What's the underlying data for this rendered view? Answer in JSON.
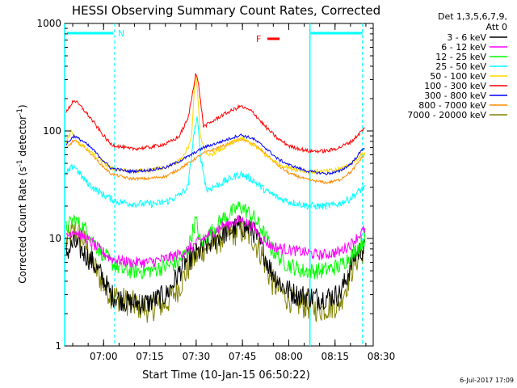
{
  "chart_data": {
    "type": "line",
    "title": "HESSI Observing Summary Count Rates, Corrected",
    "xlabel": "Start Time (10-Jan-15 06:50:22)",
    "ylabel_main": "Corrected Count Rate (s",
    "ylabel_sup1": "-1",
    "ylabel_mid": " detector",
    "ylabel_sup2": "-1",
    "ylabel_end": ")",
    "yscale": "log",
    "ylim": [
      1,
      1000
    ],
    "xlim_minutes": [
      -3,
      97
    ],
    "x_ticks": [
      {
        "label": "07:00",
        "t": 9.63
      },
      {
        "label": "07:15",
        "t": 24.63
      },
      {
        "label": "07:30",
        "t": 39.63
      },
      {
        "label": "07:45",
        "t": 54.63
      },
      {
        "label": "08:00",
        "t": 69.63
      },
      {
        "label": "08:15",
        "t": 84.63
      },
      {
        "label": "08:30",
        "t": 99.63
      }
    ],
    "y_ticks": [
      {
        "label": "1000",
        "v": 1000
      },
      {
        "label": "100",
        "v": 100
      },
      {
        "label": "10",
        "v": 10
      },
      {
        "label": "1",
        "v": 1
      }
    ],
    "legend_header": [
      "Det 1,3,5,6,7,9,",
      "Att 0"
    ],
    "legend_placement": "right",
    "series": [
      {
        "name": "3 - 6 keV",
        "color": "#000000"
      },
      {
        "name": "6 - 12 keV",
        "color": "#ff00ff"
      },
      {
        "name": "12 - 25 keV",
        "color": "#00ff00"
      },
      {
        "name": "25 - 50 keV",
        "color": "#00ffff"
      },
      {
        "name": "50 - 100 keV",
        "color": "#ffd700"
      },
      {
        "name": "100 - 300 keV",
        "color": "#ff0000"
      },
      {
        "name": "300 - 800 keV",
        "color": "#0000ff"
      },
      {
        "name": "800 - 7000 keV",
        "color": "#ff8c00"
      },
      {
        "name": "7000 - 20000 keV",
        "color": "#808000"
      }
    ],
    "profiles": {
      "3 - 6 keV": {
        "color": "#000000",
        "points": [
          [
            -3,
            7
          ],
          [
            0,
            9
          ],
          [
            3,
            7.5
          ],
          [
            6,
            6
          ],
          [
            9,
            4.5
          ],
          [
            12,
            3
          ],
          [
            18,
            2.5
          ],
          [
            24,
            2.5
          ],
          [
            30,
            3
          ],
          [
            36,
            6
          ],
          [
            42,
            8
          ],
          [
            48,
            11
          ],
          [
            54,
            13
          ],
          [
            58,
            12
          ],
          [
            61,
            8
          ],
          [
            64,
            5
          ],
          [
            68,
            3.5
          ],
          [
            72,
            3
          ],
          [
            80,
            2.8
          ],
          [
            86,
            3
          ],
          [
            88,
            4
          ],
          [
            91,
            7
          ],
          [
            94,
            8
          ]
        ],
        "noise": 0.25
      },
      "6 - 12 keV": {
        "color": "#ff00ff",
        "points": [
          [
            -3,
            10
          ],
          [
            0,
            12
          ],
          [
            4,
            10
          ],
          [
            8,
            8
          ],
          [
            12,
            6.5
          ],
          [
            18,
            6
          ],
          [
            24,
            6
          ],
          [
            30,
            6.5
          ],
          [
            36,
            7.5
          ],
          [
            42,
            10
          ],
          [
            48,
            13
          ],
          [
            54,
            15
          ],
          [
            58,
            13
          ],
          [
            61,
            10
          ],
          [
            64,
            8.5
          ],
          [
            68,
            8
          ],
          [
            74,
            7.5
          ],
          [
            80,
            7
          ],
          [
            86,
            7.5
          ],
          [
            90,
            9
          ],
          [
            94,
            12
          ]
        ],
        "noise": 0.12
      },
      "12 - 25 keV": {
        "color": "#00ff00",
        "points": [
          [
            -3,
            12
          ],
          [
            0,
            15
          ],
          [
            4,
            12
          ],
          [
            8,
            8
          ],
          [
            12,
            6
          ],
          [
            16,
            5
          ],
          [
            24,
            5
          ],
          [
            30,
            5.5
          ],
          [
            34,
            6
          ],
          [
            37,
            8
          ],
          [
            39.5,
            15
          ],
          [
            41,
            9
          ],
          [
            44,
            11
          ],
          [
            48,
            15
          ],
          [
            54,
            20
          ],
          [
            58,
            16
          ],
          [
            61,
            12
          ],
          [
            64,
            8
          ],
          [
            68,
            6
          ],
          [
            74,
            5
          ],
          [
            80,
            5
          ],
          [
            86,
            5.5
          ],
          [
            90,
            7
          ],
          [
            94,
            10
          ]
        ],
        "noise": 0.18
      },
      "25 - 50 keV": {
        "color": "#00ffff",
        "points": [
          [
            -3,
            38
          ],
          [
            0,
            48
          ],
          [
            3,
            36
          ],
          [
            6,
            30
          ],
          [
            10,
            25
          ],
          [
            14,
            22
          ],
          [
            20,
            21
          ],
          [
            26,
            21
          ],
          [
            30,
            22
          ],
          [
            34,
            25
          ],
          [
            37,
            30
          ],
          [
            39,
            100
          ],
          [
            40,
            130
          ],
          [
            41,
            60
          ],
          [
            43,
            28
          ],
          [
            48,
            33
          ],
          [
            54,
            40
          ],
          [
            58,
            35
          ],
          [
            62,
            28
          ],
          [
            66,
            24
          ],
          [
            70,
            22
          ],
          [
            76,
            20
          ],
          [
            82,
            20
          ],
          [
            86,
            21
          ],
          [
            90,
            24
          ],
          [
            94,
            30
          ]
        ],
        "noise": 0.08
      },
      "50 - 100 keV": {
        "color": "#ffd700",
        "points": [
          [
            -3,
            70
          ],
          [
            -1,
            100
          ],
          [
            1,
            80
          ],
          [
            4,
            68
          ],
          [
            8,
            55
          ],
          [
            12,
            45
          ],
          [
            18,
            42
          ],
          [
            24,
            43
          ],
          [
            30,
            46
          ],
          [
            35,
            55
          ],
          [
            38,
            80
          ],
          [
            39.5,
            380
          ],
          [
            41,
            90
          ],
          [
            43,
            58
          ],
          [
            48,
            68
          ],
          [
            54,
            85
          ],
          [
            58,
            75
          ],
          [
            62,
            60
          ],
          [
            66,
            50
          ],
          [
            70,
            45
          ],
          [
            76,
            42
          ],
          [
            82,
            42
          ],
          [
            86,
            44
          ],
          [
            90,
            50
          ],
          [
            94,
            62
          ]
        ],
        "noise": 0.05
      },
      "100 - 300 keV": {
        "color": "#ff0000",
        "points": [
          [
            -3,
            140
          ],
          [
            0,
            195
          ],
          [
            3,
            160
          ],
          [
            6,
            125
          ],
          [
            9,
            95
          ],
          [
            12,
            75
          ],
          [
            18,
            68
          ],
          [
            24,
            70
          ],
          [
            30,
            76
          ],
          [
            34,
            88
          ],
          [
            37,
            130
          ],
          [
            38.5,
            230
          ],
          [
            39.5,
            350
          ],
          [
            40.5,
            260
          ],
          [
            42,
            110
          ],
          [
            44,
            118
          ],
          [
            48,
            140
          ],
          [
            54,
            170
          ],
          [
            58,
            150
          ],
          [
            62,
            110
          ],
          [
            66,
            85
          ],
          [
            70,
            72
          ],
          [
            76,
            65
          ],
          [
            82,
            65
          ],
          [
            86,
            70
          ],
          [
            90,
            80
          ],
          [
            94,
            105
          ]
        ],
        "noise": 0.04
      },
      "300 - 800 keV": {
        "color": "#0000ff",
        "points": [
          [
            -3,
            72
          ],
          [
            0,
            90
          ],
          [
            3,
            80
          ],
          [
            6,
            68
          ],
          [
            9,
            55
          ],
          [
            12,
            45
          ],
          [
            18,
            42
          ],
          [
            24,
            43
          ],
          [
            30,
            46
          ],
          [
            34,
            52
          ],
          [
            38,
            60
          ],
          [
            42,
            70
          ],
          [
            48,
            80
          ],
          [
            54,
            92
          ],
          [
            58,
            85
          ],
          [
            62,
            70
          ],
          [
            66,
            55
          ],
          [
            70,
            48
          ],
          [
            76,
            42
          ],
          [
            82,
            40
          ],
          [
            86,
            42
          ],
          [
            90,
            50
          ],
          [
            94,
            70
          ]
        ],
        "noise": 0.03
      },
      "800 - 7000 keV": {
        "color": "#ff8c00",
        "points": [
          [
            -3,
            66
          ],
          [
            0,
            82
          ],
          [
            3,
            72
          ],
          [
            6,
            60
          ],
          [
            9,
            48
          ],
          [
            12,
            40
          ],
          [
            18,
            36
          ],
          [
            24,
            36
          ],
          [
            30,
            38
          ],
          [
            34,
            44
          ],
          [
            38,
            52
          ],
          [
            42,
            62
          ],
          [
            48,
            72
          ],
          [
            54,
            84
          ],
          [
            58,
            76
          ],
          [
            62,
            62
          ],
          [
            66,
            48
          ],
          [
            70,
            40
          ],
          [
            76,
            35
          ],
          [
            82,
            33
          ],
          [
            86,
            35
          ],
          [
            90,
            42
          ],
          [
            94,
            60
          ]
        ],
        "noise": 0.03
      },
      "7000 - 20000 keV": {
        "color": "#808000",
        "points": [
          [
            -3,
            9
          ],
          [
            0,
            11.5
          ],
          [
            3,
            10
          ],
          [
            6,
            6
          ],
          [
            9,
            4
          ],
          [
            12,
            3
          ],
          [
            18,
            2.5
          ],
          [
            24,
            2.2
          ],
          [
            30,
            2.5
          ],
          [
            34,
            3.5
          ],
          [
            38,
            6
          ],
          [
            42,
            8
          ],
          [
            48,
            10
          ],
          [
            54,
            12
          ],
          [
            58,
            10
          ],
          [
            61,
            7
          ],
          [
            64,
            4
          ],
          [
            68,
            3
          ],
          [
            72,
            2.5
          ],
          [
            80,
            2.2
          ],
          [
            86,
            2.5
          ],
          [
            88,
            3.5
          ],
          [
            91,
            6
          ],
          [
            94,
            8
          ]
        ],
        "noise": 0.3
      }
    },
    "annotations": [
      {
        "label": "N",
        "color": "#00ffff"
      },
      {
        "label": "F",
        "color": "#ff0000"
      }
    ],
    "timestamp": "6-Jul-2017 17:09"
  }
}
